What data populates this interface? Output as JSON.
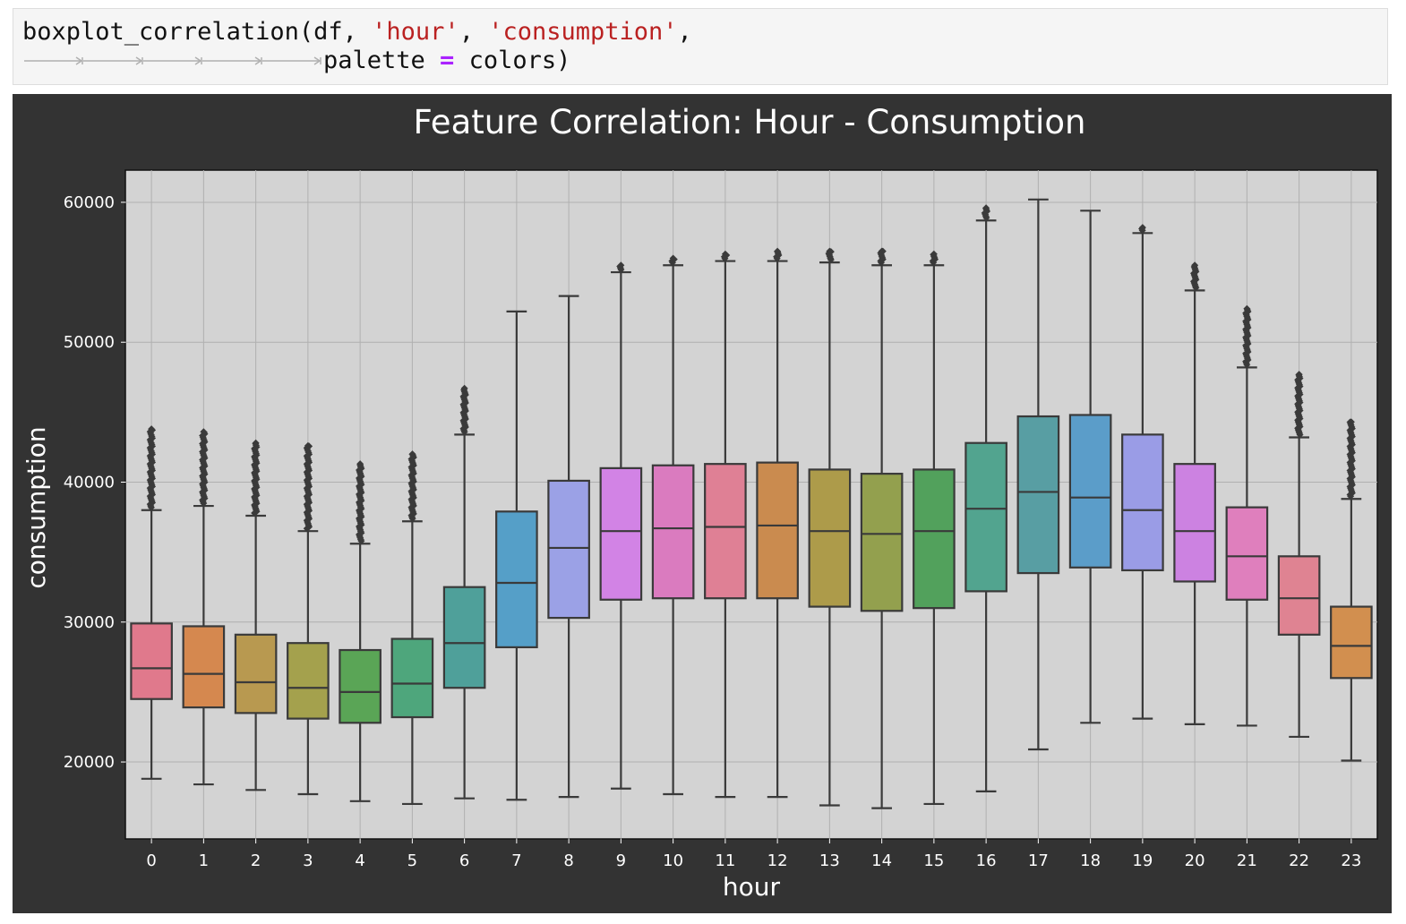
{
  "code": {
    "line1_fn": "boxplot_correlation(df, ",
    "line1_arg1": "'hour'",
    "line1_sep": ", ",
    "line1_arg2": "'consumption'",
    "line1_end": ",",
    "line2_kw": "palette ",
    "line2_op": "=",
    "line2_val": " colors)"
  },
  "chart_data": {
    "type": "box",
    "title": "Feature Correlation: Hour - Consumption",
    "xlabel": "hour",
    "ylabel": "consumption",
    "ylim": [
      14500,
      62300
    ],
    "yticks": [
      20000,
      30000,
      40000,
      50000,
      60000
    ],
    "grid": true,
    "background": "#d3d3d3",
    "figure_background": "#333333",
    "categories": [
      "0",
      "1",
      "2",
      "3",
      "4",
      "5",
      "6",
      "7",
      "8",
      "9",
      "10",
      "11",
      "12",
      "13",
      "14",
      "15",
      "16",
      "17",
      "18",
      "19",
      "20",
      "21",
      "22",
      "23"
    ],
    "boxes": [
      {
        "cat": "0",
        "min": 18800,
        "q1": 24500,
        "median": 26700,
        "q3": 29900,
        "max": 38000,
        "outlier_max": 43800,
        "color": "#e0798c"
      },
      {
        "cat": "1",
        "min": 18400,
        "q1": 23900,
        "median": 26300,
        "q3": 29700,
        "max": 38300,
        "outlier_max": 43600,
        "color": "#d5884f"
      },
      {
        "cat": "2",
        "min": 18000,
        "q1": 23500,
        "median": 25700,
        "q3": 29100,
        "max": 37600,
        "outlier_max": 42800,
        "color": "#b89950"
      },
      {
        "cat": "3",
        "min": 17700,
        "q1": 23100,
        "median": 25300,
        "q3": 28500,
        "max": 36500,
        "outlier_max": 42600,
        "color": "#a4a14d"
      },
      {
        "cat": "4",
        "min": 17200,
        "q1": 22800,
        "median": 25000,
        "q3": 28000,
        "max": 35600,
        "outlier_max": 41300,
        "color": "#5aa556"
      },
      {
        "cat": "5",
        "min": 17000,
        "q1": 23200,
        "median": 25600,
        "q3": 28800,
        "max": 37200,
        "outlier_max": 42000,
        "color": "#4ea67c"
      },
      {
        "cat": "6",
        "min": 17400,
        "q1": 25300,
        "median": 28500,
        "q3": 32500,
        "max": 43400,
        "outlier_max": 46700,
        "color": "#4fa09a"
      },
      {
        "cat": "7",
        "min": 17300,
        "q1": 28200,
        "median": 32800,
        "q3": 37900,
        "max": 52200,
        "outlier_max": null,
        "color": "#559fc8"
      },
      {
        "cat": "8",
        "min": 17500,
        "q1": 30300,
        "median": 35300,
        "q3": 40100,
        "max": 53300,
        "outlier_max": null,
        "color": "#9ba1e6"
      },
      {
        "cat": "9",
        "min": 18100,
        "q1": 31600,
        "median": 36500,
        "q3": 41000,
        "max": 55000,
        "outlier_max": 55500,
        "color": "#d283e5"
      },
      {
        "cat": "10",
        "min": 17700,
        "q1": 31700,
        "median": 36700,
        "q3": 41200,
        "max": 55500,
        "outlier_max": 56000,
        "color": "#da7bbf"
      },
      {
        "cat": "11",
        "min": 17500,
        "q1": 31700,
        "median": 36800,
        "q3": 41300,
        "max": 55800,
        "outlier_max": 56300,
        "color": "#df8095"
      },
      {
        "cat": "12",
        "min": 17500,
        "q1": 31700,
        "median": 36900,
        "q3": 41400,
        "max": 55800,
        "outlier_max": 56500,
        "color": "#ca8b4f"
      },
      {
        "cat": "13",
        "min": 16900,
        "q1": 31100,
        "median": 36500,
        "q3": 40900,
        "max": 55700,
        "outlier_max": 56500,
        "color": "#ad9b4a"
      },
      {
        "cat": "14",
        "min": 16700,
        "q1": 30800,
        "median": 36300,
        "q3": 40600,
        "max": 55500,
        "outlier_max": 56500,
        "color": "#93a04e"
      },
      {
        "cat": "15",
        "min": 17000,
        "q1": 31000,
        "median": 36500,
        "q3": 40900,
        "max": 55500,
        "outlier_max": 56300,
        "color": "#52a15c"
      },
      {
        "cat": "16",
        "min": 17900,
        "q1": 32200,
        "median": 38100,
        "q3": 42800,
        "max": 58700,
        "outlier_max": 59600,
        "color": "#52a48f"
      },
      {
        "cat": "17",
        "min": 20900,
        "q1": 33500,
        "median": 39300,
        "q3": 44700,
        "max": 60200,
        "outlier_max": null,
        "color": "#589ea3"
      },
      {
        "cat": "18",
        "min": 22800,
        "q1": 33900,
        "median": 38900,
        "q3": 44800,
        "max": 59400,
        "outlier_max": null,
        "color": "#5b9dc9"
      },
      {
        "cat": "19",
        "min": 23100,
        "q1": 33700,
        "median": 38000,
        "q3": 43400,
        "max": 57800,
        "outlier_max": 58200,
        "color": "#9a9ce6"
      },
      {
        "cat": "20",
        "min": 22700,
        "q1": 32900,
        "median": 36500,
        "q3": 41300,
        "max": 53700,
        "outlier_max": 55500,
        "color": "#cc82e1"
      },
      {
        "cat": "21",
        "min": 22600,
        "q1": 31600,
        "median": 34700,
        "q3": 38200,
        "max": 48200,
        "outlier_max": 52400,
        "color": "#df7fbd"
      },
      {
        "cat": "22",
        "min": 21800,
        "q1": 29100,
        "median": 31700,
        "q3": 34700,
        "max": 43200,
        "outlier_max": 47700,
        "color": "#df8392"
      },
      {
        "cat": "23",
        "min": 20100,
        "q1": 26000,
        "median": 28300,
        "q3": 31100,
        "max": 38800,
        "outlier_max": 44300,
        "color": "#d28f4f"
      }
    ]
  }
}
